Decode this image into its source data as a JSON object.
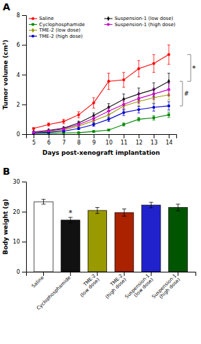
{
  "chart_data": [
    {
      "type": "line",
      "title": "A",
      "xlabel": "Days post-xenograft implantation",
      "ylabel": "Tumor volume (cm³)",
      "x": [
        5,
        6,
        7,
        8,
        9,
        10,
        11,
        12,
        13,
        14
      ],
      "xlim": [
        4.5,
        14.5
      ],
      "xticks": [
        5,
        6,
        7,
        8,
        9,
        10,
        11,
        12,
        13,
        14
      ],
      "ylim": [
        0,
        8
      ],
      "yticks": [
        0,
        2,
        4,
        6,
        8
      ],
      "grid": false,
      "legend": "upper left",
      "series": [
        {
          "name": "Saline",
          "color": "#ff0000",
          "marker": "circle",
          "line_style": "solid",
          "values": [
            0.38,
            0.65,
            0.85,
            1.3,
            2.1,
            3.55,
            3.65,
            4.4,
            4.75,
            5.35
          ],
          "errors": [
            0.05,
            0.1,
            0.15,
            0.2,
            0.35,
            0.55,
            0.5,
            0.55,
            0.6,
            0.65
          ]
        },
        {
          "name": "Cyclophosphamide",
          "color": "#008800",
          "marker": "square",
          "line_style": "solid",
          "values": [
            0.05,
            0.05,
            0.08,
            0.1,
            0.18,
            0.28,
            0.65,
            1.0,
            1.1,
            1.3
          ],
          "errors": [
            0.02,
            0.02,
            0.03,
            0.03,
            0.05,
            0.05,
            0.1,
            0.12,
            0.15,
            0.18
          ]
        },
        {
          "name": "TME-2 (low dose)",
          "color": "#999900",
          "marker": "diamond",
          "line_style": "solid",
          "values": [
            0.1,
            0.18,
            0.28,
            0.55,
            0.9,
            1.3,
            1.9,
            2.2,
            2.45,
            2.65
          ],
          "errors": [
            0.03,
            0.05,
            0.06,
            0.1,
            0.15,
            0.2,
            0.28,
            0.3,
            0.32,
            0.35
          ]
        },
        {
          "name": "TME-2 (high dose)",
          "color": "#0000cc",
          "marker": "circle",
          "line_style": "solid",
          "values": [
            0.08,
            0.12,
            0.2,
            0.38,
            0.65,
            1.0,
            1.45,
            1.65,
            1.8,
            1.9
          ],
          "errors": [
            0.02,
            0.03,
            0.05,
            0.08,
            0.12,
            0.15,
            0.2,
            0.22,
            0.25,
            0.28
          ]
        },
        {
          "name": "Suspension-1 (low dose)",
          "color": "#111111",
          "marker": "diamond",
          "line_style": "solid",
          "values": [
            0.15,
            0.25,
            0.4,
            0.75,
            1.25,
            1.8,
            2.35,
            2.7,
            3.0,
            3.55
          ],
          "errors": [
            0.04,
            0.06,
            0.08,
            0.12,
            0.18,
            0.25,
            0.35,
            0.4,
            0.45,
            0.55
          ]
        },
        {
          "name": "Suspension-1 (high dose)",
          "color": "#cc00cc",
          "marker": "circle",
          "line_style": "solid",
          "values": [
            0.12,
            0.22,
            0.35,
            0.65,
            1.05,
            1.55,
            2.0,
            2.4,
            2.7,
            3.0
          ],
          "errors": [
            0.03,
            0.05,
            0.07,
            0.1,
            0.15,
            0.2,
            0.28,
            0.32,
            0.38,
            0.42
          ]
        }
      ],
      "annotations": [
        {
          "text": "*",
          "y": [
            5.35,
            3.55
          ]
        },
        {
          "text": "#",
          "y": [
            3.55,
            1.9
          ]
        }
      ]
    },
    {
      "type": "bar",
      "title": "B",
      "ylabel": "Body weight (g)",
      "categories": [
        "Saline",
        "Cyclophosphamide",
        "TME-2\n(low dose)",
        "TME-2\n(high dose)",
        "Suspension-1\n(low dose)",
        "Suspension-1\n(high dose)"
      ],
      "values": [
        23.3,
        17.2,
        20.4,
        19.7,
        22.2,
        21.4
      ],
      "errors": [
        0.8,
        0.9,
        1.0,
        1.2,
        0.9,
        1.1
      ],
      "colors": [
        "#ffffff",
        "#111111",
        "#999900",
        "#aa2200",
        "#2222cc",
        "#005500"
      ],
      "ylim": [
        0,
        30
      ],
      "yticks": [
        0,
        10,
        20,
        30
      ],
      "grid": false,
      "annotations": [
        {
          "text": "*",
          "category": "Cyclophosphamide"
        }
      ]
    }
  ]
}
